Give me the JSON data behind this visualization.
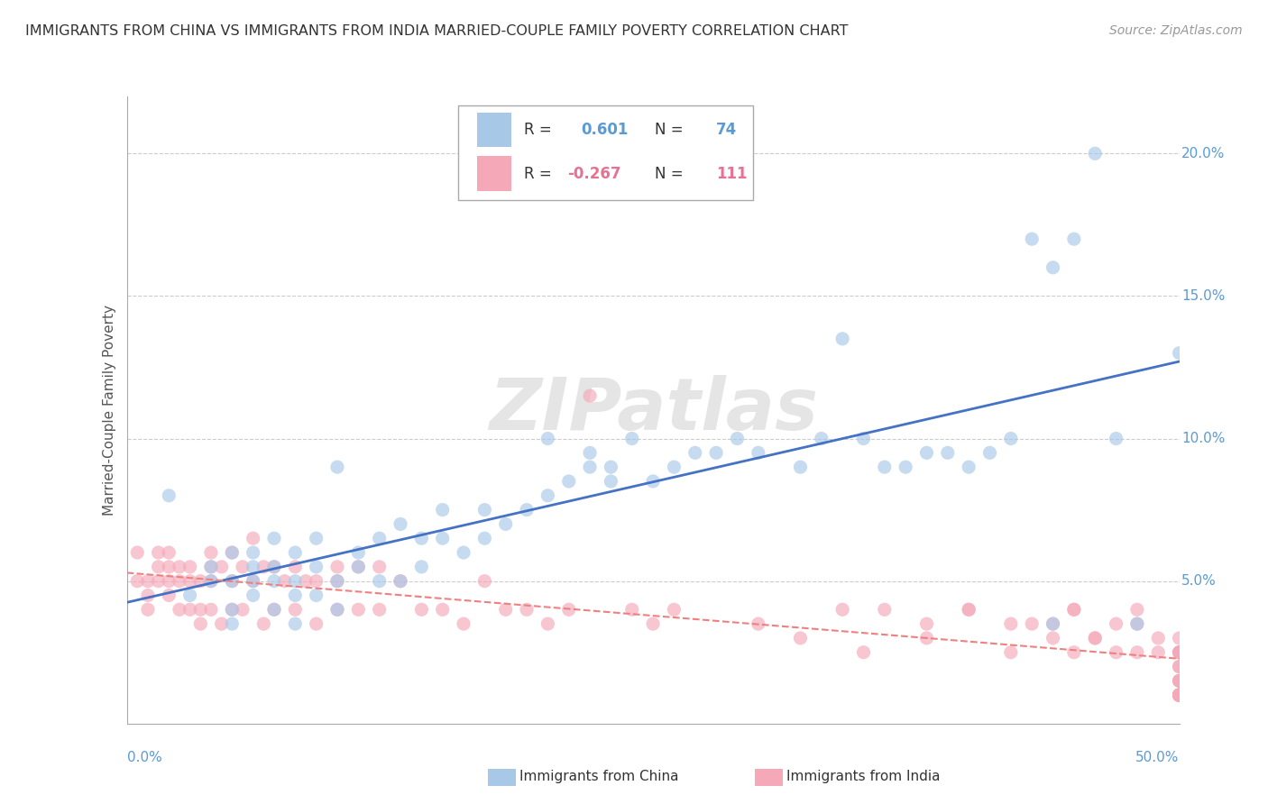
{
  "title": "IMMIGRANTS FROM CHINA VS IMMIGRANTS FROM INDIA MARRIED-COUPLE FAMILY POVERTY CORRELATION CHART",
  "source": "Source: ZipAtlas.com",
  "ylabel": "Married-Couple Family Poverty",
  "ytick_labels": [
    "5.0%",
    "10.0%",
    "15.0%",
    "20.0%"
  ],
  "ytick_values": [
    0.05,
    0.1,
    0.15,
    0.2
  ],
  "xlim": [
    0.0,
    0.5
  ],
  "ylim": [
    0.0,
    0.22
  ],
  "china_color": "#A8C8E8",
  "india_color": "#F4A8B8",
  "china_line_color": "#4472C4",
  "india_line_color": "#F08080",
  "watermark": "ZIPatlas",
  "watermark_color": "#DDDDDD",
  "grid_color": "#CCCCCC",
  "background_color": "#FFFFFF",
  "china_scatter_x": [
    0.02,
    0.03,
    0.04,
    0.04,
    0.05,
    0.05,
    0.05,
    0.05,
    0.06,
    0.06,
    0.06,
    0.06,
    0.07,
    0.07,
    0.07,
    0.07,
    0.08,
    0.08,
    0.08,
    0.08,
    0.09,
    0.09,
    0.09,
    0.1,
    0.1,
    0.1,
    0.11,
    0.11,
    0.12,
    0.12,
    0.13,
    0.13,
    0.14,
    0.14,
    0.15,
    0.15,
    0.16,
    0.17,
    0.17,
    0.18,
    0.19,
    0.2,
    0.2,
    0.21,
    0.22,
    0.22,
    0.23,
    0.23,
    0.24,
    0.25,
    0.26,
    0.27,
    0.28,
    0.29,
    0.3,
    0.32,
    0.33,
    0.34,
    0.35,
    0.36,
    0.37,
    0.38,
    0.39,
    0.4,
    0.41,
    0.42,
    0.43,
    0.44,
    0.44,
    0.45,
    0.46,
    0.47,
    0.48,
    0.5
  ],
  "china_scatter_y": [
    0.08,
    0.045,
    0.05,
    0.055,
    0.035,
    0.04,
    0.05,
    0.06,
    0.045,
    0.05,
    0.055,
    0.06,
    0.04,
    0.05,
    0.055,
    0.065,
    0.035,
    0.045,
    0.05,
    0.06,
    0.045,
    0.055,
    0.065,
    0.04,
    0.05,
    0.09,
    0.055,
    0.06,
    0.05,
    0.065,
    0.05,
    0.07,
    0.055,
    0.065,
    0.065,
    0.075,
    0.06,
    0.065,
    0.075,
    0.07,
    0.075,
    0.08,
    0.1,
    0.085,
    0.09,
    0.095,
    0.085,
    0.09,
    0.1,
    0.085,
    0.09,
    0.095,
    0.095,
    0.1,
    0.095,
    0.09,
    0.1,
    0.135,
    0.1,
    0.09,
    0.09,
    0.095,
    0.095,
    0.09,
    0.095,
    0.1,
    0.17,
    0.16,
    0.035,
    0.17,
    0.2,
    0.1,
    0.035,
    0.13
  ],
  "india_scatter_x": [
    0.005,
    0.005,
    0.01,
    0.01,
    0.01,
    0.015,
    0.015,
    0.015,
    0.02,
    0.02,
    0.02,
    0.02,
    0.025,
    0.025,
    0.025,
    0.03,
    0.03,
    0.03,
    0.035,
    0.035,
    0.035,
    0.04,
    0.04,
    0.04,
    0.04,
    0.045,
    0.045,
    0.05,
    0.05,
    0.05,
    0.055,
    0.055,
    0.06,
    0.06,
    0.065,
    0.065,
    0.07,
    0.07,
    0.075,
    0.08,
    0.08,
    0.085,
    0.09,
    0.09,
    0.1,
    0.1,
    0.1,
    0.11,
    0.11,
    0.12,
    0.12,
    0.13,
    0.14,
    0.15,
    0.16,
    0.17,
    0.18,
    0.19,
    0.2,
    0.21,
    0.22,
    0.24,
    0.25,
    0.26,
    0.3,
    0.32,
    0.34,
    0.36,
    0.38,
    0.4,
    0.42,
    0.43,
    0.44,
    0.45,
    0.46,
    0.47,
    0.48,
    0.48,
    0.49,
    0.5,
    0.35,
    0.38,
    0.4,
    0.42,
    0.44,
    0.45,
    0.46,
    0.47,
    0.48,
    0.49,
    0.5,
    0.5,
    0.5,
    0.5,
    0.5,
    0.5,
    0.5,
    0.5,
    0.5,
    0.5,
    0.5,
    0.5,
    0.5,
    0.5,
    0.5,
    0.5,
    0.5,
    0.5,
    0.5,
    0.5,
    0.45
  ],
  "india_scatter_y": [
    0.06,
    0.05,
    0.05,
    0.045,
    0.04,
    0.06,
    0.05,
    0.055,
    0.055,
    0.05,
    0.045,
    0.06,
    0.04,
    0.05,
    0.055,
    0.04,
    0.05,
    0.055,
    0.035,
    0.04,
    0.05,
    0.06,
    0.05,
    0.04,
    0.055,
    0.035,
    0.055,
    0.04,
    0.05,
    0.06,
    0.04,
    0.055,
    0.05,
    0.065,
    0.035,
    0.055,
    0.04,
    0.055,
    0.05,
    0.04,
    0.055,
    0.05,
    0.035,
    0.05,
    0.04,
    0.05,
    0.055,
    0.04,
    0.055,
    0.04,
    0.055,
    0.05,
    0.04,
    0.04,
    0.035,
    0.05,
    0.04,
    0.04,
    0.035,
    0.04,
    0.115,
    0.04,
    0.035,
    0.04,
    0.035,
    0.03,
    0.04,
    0.04,
    0.035,
    0.04,
    0.035,
    0.035,
    0.03,
    0.04,
    0.03,
    0.035,
    0.035,
    0.04,
    0.025,
    0.03,
    0.025,
    0.03,
    0.04,
    0.025,
    0.035,
    0.025,
    0.03,
    0.025,
    0.025,
    0.03,
    0.025,
    0.025,
    0.02,
    0.025,
    0.02,
    0.015,
    0.025,
    0.015,
    0.01,
    0.015,
    0.01,
    0.01,
    0.01,
    0.01,
    0.01,
    0.01,
    0.01,
    0.01,
    0.01,
    0.01,
    0.04
  ]
}
